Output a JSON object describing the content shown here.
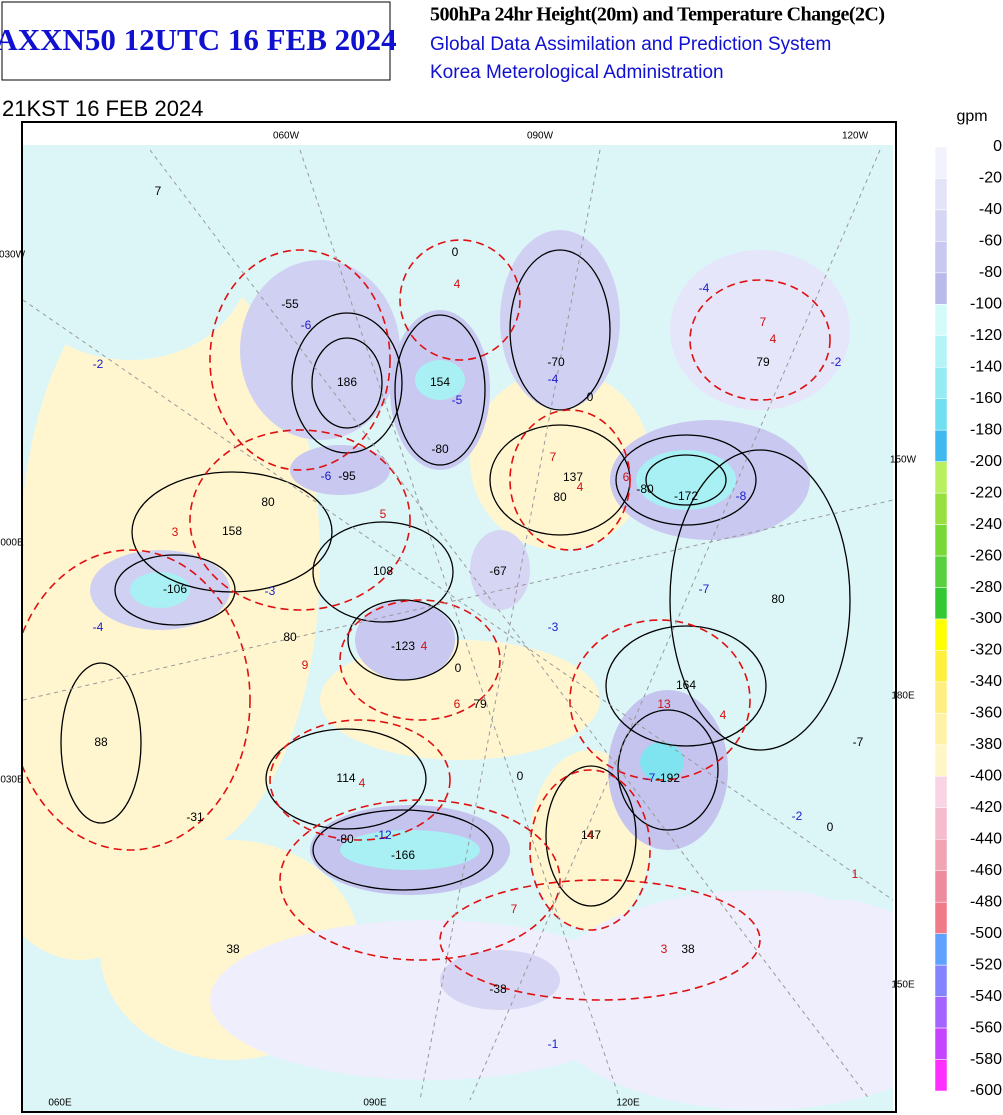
{
  "header": {
    "code": "AXXN50 12UTC 16 FEB 2024",
    "product": "500hPa 24hr Height(20m) and Temperature Change(2C)",
    "system": "Global Data Assimilation and Prediction System",
    "agency": "Korea Meterological Administration",
    "valid_time": "21KST 16 FEB 2024"
  },
  "colorbar": {
    "unit": "gpm",
    "labels": [
      0,
      -20,
      -40,
      -60,
      -80,
      -100,
      -120,
      -140,
      -160,
      -180,
      -200,
      -220,
      -240,
      -260,
      -280,
      -300,
      -320,
      -340,
      -360,
      -380,
      -400,
      -420,
      -440,
      -460,
      -480,
      -500,
      -520,
      -540,
      -560,
      -580,
      -600
    ],
    "colors": [
      "#f2f2fc",
      "#e4e4f8",
      "#d6d6f4",
      "#c8c8f0",
      "#babaea",
      "#d4fafa",
      "#b4f4f6",
      "#94ecf2",
      "#70e0f0",
      "#40b8f0",
      "#b8f060",
      "#98e040",
      "#78d838",
      "#58d040",
      "#34c834",
      "#ffff00",
      "#fff040",
      "#ffee80",
      "#fff2a8",
      "#fff6c8",
      "#f8d4e4",
      "#f4bccc",
      "#f0a4b4",
      "#ec8c9c",
      "#f07a88",
      "#60a0ff",
      "#8484ff",
      "#a464ff",
      "#c444ff",
      "#ff30ff"
    ]
  },
  "map": {
    "grid_labels": [
      "060W",
      "090W",
      "120W",
      "030W",
      "150W",
      "000E",
      "180E",
      "030E",
      "150E",
      "060E",
      "090E",
      "120E"
    ],
    "height_labels": [
      "7",
      "-55",
      "186",
      "154",
      "-70",
      "79",
      "-95",
      "137",
      "-172",
      "80",
      "158",
      "108",
      "-67",
      "-106",
      "80",
      "-123",
      "164",
      "79",
      "88",
      "114",
      "-192",
      "-7",
      "-31",
      "-166",
      "147",
      "38",
      "38",
      "-38"
    ],
    "temp_cold_labels": [
      "-6",
      "-5",
      "-4",
      "-2",
      "-4",
      "-2",
      "-6",
      "-8",
      "-3",
      "-4",
      "-7",
      "-3",
      "-7",
      "-2",
      "-12",
      "-1"
    ],
    "temp_warm_labels": [
      "4",
      "7",
      "4",
      "7",
      "4",
      "5",
      "3",
      "6",
      "4",
      "9",
      "6",
      "13",
      "4",
      "4",
      "4",
      "7",
      "3",
      "1"
    ],
    "contour_labels": [
      "80",
      "-80",
      "-80",
      "-80",
      "80",
      "0",
      "0",
      "0",
      "0",
      "0"
    ]
  }
}
